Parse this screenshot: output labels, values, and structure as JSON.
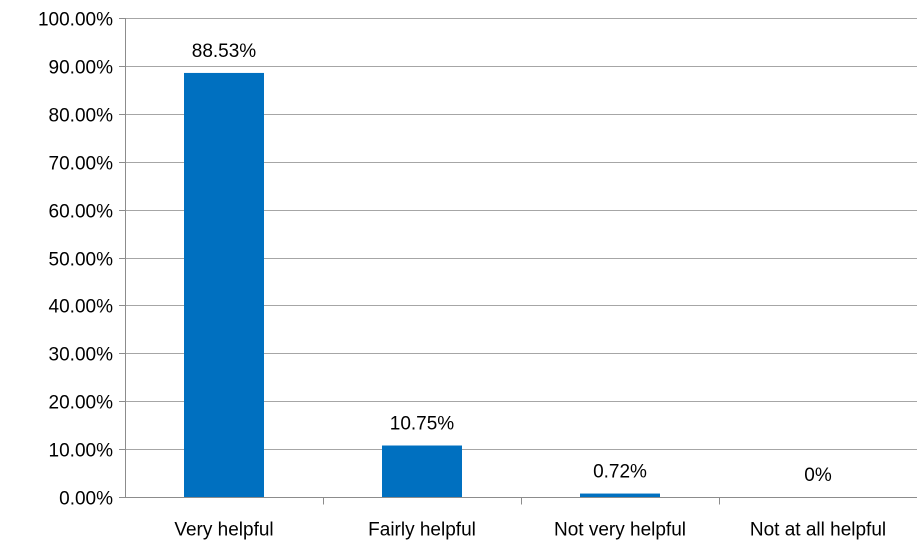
{
  "chart_data": {
    "type": "bar",
    "categories": [
      "Very helpful",
      "Fairly helpful",
      "Not very helpful",
      "Not at all helpful"
    ],
    "values": [
      88.53,
      10.75,
      0.72,
      0
    ],
    "data_labels": [
      "88.53%",
      "10.75%",
      "0.72%",
      "0%"
    ],
    "title": "",
    "xlabel": "",
    "ylabel": "",
    "ylim": [
      0,
      100
    ],
    "ytick_step": 10,
    "yticks": [
      "0.00%",
      "10.00%",
      "20.00%",
      "30.00%",
      "40.00%",
      "50.00%",
      "60.00%",
      "70.00%",
      "80.00%",
      "90.00%",
      "100.00%"
    ],
    "grid": true,
    "legend": "none",
    "colors": {
      "bar": "#0070c0",
      "grid": "#a6a6a6",
      "axis": "#8c8c8c",
      "text": "#000000"
    }
  }
}
